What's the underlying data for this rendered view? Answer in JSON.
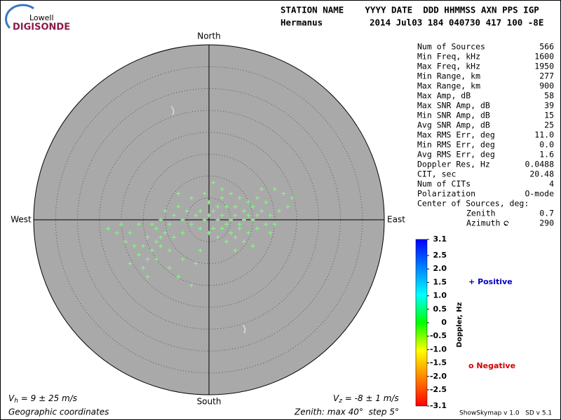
{
  "logo": {
    "top": "Lowell",
    "bottom": "DIGISONDE"
  },
  "header": {
    "row1": "STATION NAME    YYYY DATE  DDD HHMMSS AXN PPS IGP",
    "station": "Hermanus",
    "row2": "2014 Jul03 184 040730 417 100 -8E"
  },
  "stats": {
    "rows": [
      [
        "Num of Sources",
        "566"
      ],
      [
        "Min Freq, kHz",
        "1600"
      ],
      [
        "Max Freq, kHz",
        "1950"
      ],
      [
        "Min Range, km",
        "277"
      ],
      [
        "Max Range, km",
        "900"
      ],
      [
        "Max Amp, dB",
        "58"
      ],
      [
        "Max SNR Amp, dB",
        "39"
      ],
      [
        "Min SNR Amp, dB",
        "15"
      ],
      [
        "Avg SNR Amp, dB",
        "25"
      ],
      [
        "Max RMS Err, deg",
        "11.0"
      ],
      [
        "Min RMS Err, deg",
        "0.0"
      ],
      [
        "Avg RMS Err, deg",
        "1.6"
      ],
      [
        "Doppler Res, Hz",
        "0.0488"
      ],
      [
        "CIT, sec",
        "20.48"
      ],
      [
        "Num of CITs",
        "4"
      ],
      [
        "Polarization",
        "O-mode"
      ]
    ],
    "center_title": "Center of Sources, deg:",
    "center_rows": [
      [
        "Zenith",
        "0.7"
      ],
      [
        "Azimuth",
        "290"
      ]
    ]
  },
  "chart_data": {
    "type": "polar_scatter",
    "directions": {
      "north": "North",
      "south": "South",
      "east": "East",
      "west": "West"
    },
    "rlim": [
      0,
      40
    ],
    "rticks": [
      5,
      10,
      15,
      20,
      25,
      30,
      35
    ],
    "color": "#80ff80",
    "background": "#a9a9a9",
    "x": [
      0,
      1,
      2,
      3,
      4,
      5,
      6,
      7,
      8,
      9,
      10,
      11,
      2,
      4,
      6,
      8,
      10,
      12,
      1,
      3,
      5,
      7,
      9,
      11,
      0,
      3,
      5,
      7,
      9,
      11,
      13,
      14,
      15,
      13,
      -1,
      -2,
      -3,
      -4,
      -2,
      0,
      2,
      4,
      6,
      8,
      16,
      18,
      19,
      17,
      15,
      12,
      -5,
      -6,
      -7,
      -8,
      -9,
      -10,
      -11,
      -12,
      -4,
      -7,
      1,
      3,
      -1,
      6,
      10,
      14,
      -6,
      -8,
      -10,
      -12,
      -14,
      -15,
      -13,
      -11,
      -9,
      -16,
      -17,
      -14,
      -12,
      -18,
      -19,
      -20,
      -23,
      -18,
      -15,
      -14,
      -9,
      -6,
      -7,
      -13,
      -16,
      -21,
      -4,
      -2,
      -3,
      -11
    ],
    "y": [
      1,
      2,
      0,
      1,
      -1,
      0,
      1,
      -1,
      0,
      1,
      0,
      1,
      3,
      3,
      3,
      2,
      3,
      2,
      -2,
      -2,
      -3,
      -2,
      -3,
      -2,
      4,
      5,
      6,
      5,
      4,
      5,
      4,
      1,
      -1,
      -1,
      0,
      2,
      1,
      -1,
      -2,
      -3,
      -4,
      -5,
      -4,
      -5,
      2,
      3,
      5,
      6,
      7,
      7,
      2,
      0,
      3,
      1,
      -1,
      2,
      0,
      -2,
      5,
      6,
      8.5,
      7,
      6,
      -7,
      -6,
      -3,
      -3,
      -4,
      -3,
      -5,
      -4,
      -6,
      -7,
      -6,
      -7,
      -8,
      -6,
      -9,
      -9,
      -3,
      -5,
      -1,
      -2,
      -10,
      -11,
      -13,
      -11,
      -9,
      -13,
      -1,
      -1,
      -3,
      -15,
      -7,
      -10,
      -4
    ]
  },
  "colorbar": {
    "label": "Doppler, Hz",
    "lim": [
      -3.1,
      3.1
    ],
    "colors": [
      "#ff0000",
      "#ff8000",
      "#ffff00",
      "#00ff00",
      "#00ffff",
      "#0080ff",
      "#0000ff"
    ],
    "ticks": [
      3.1,
      2.5,
      2,
      1.5,
      1,
      0.5,
      0,
      -0.5,
      -1,
      -1.5,
      -2,
      -2.5,
      -3.1
    ],
    "tick_labels": [
      "3.1",
      "2.5",
      "2.0",
      "1.5",
      "1.0",
      "0.5",
      "0",
      "-0.5",
      "-1.0",
      "-1.5",
      "-2.0",
      "-2.5",
      "-3.1"
    ]
  },
  "legend": {
    "positive": {
      "symbol": "+",
      "text": "Positive",
      "color": "#0000c0"
    },
    "negative": {
      "symbol": "o",
      "text": "Negative",
      "color": "#d00000"
    }
  },
  "footer": {
    "vh": {
      "symbol": "V",
      "sub": "h",
      "text": " = 9 ± 25 m/s"
    },
    "vz": {
      "symbol": "V",
      "sub": "z",
      "text": " = -8 ± 1 m/s"
    },
    "coords": "Geographic coordinates",
    "zenith": "Zenith: max 40°  step 5°",
    "version": "ShowSkymap v 1.0   SD v 5.1"
  }
}
